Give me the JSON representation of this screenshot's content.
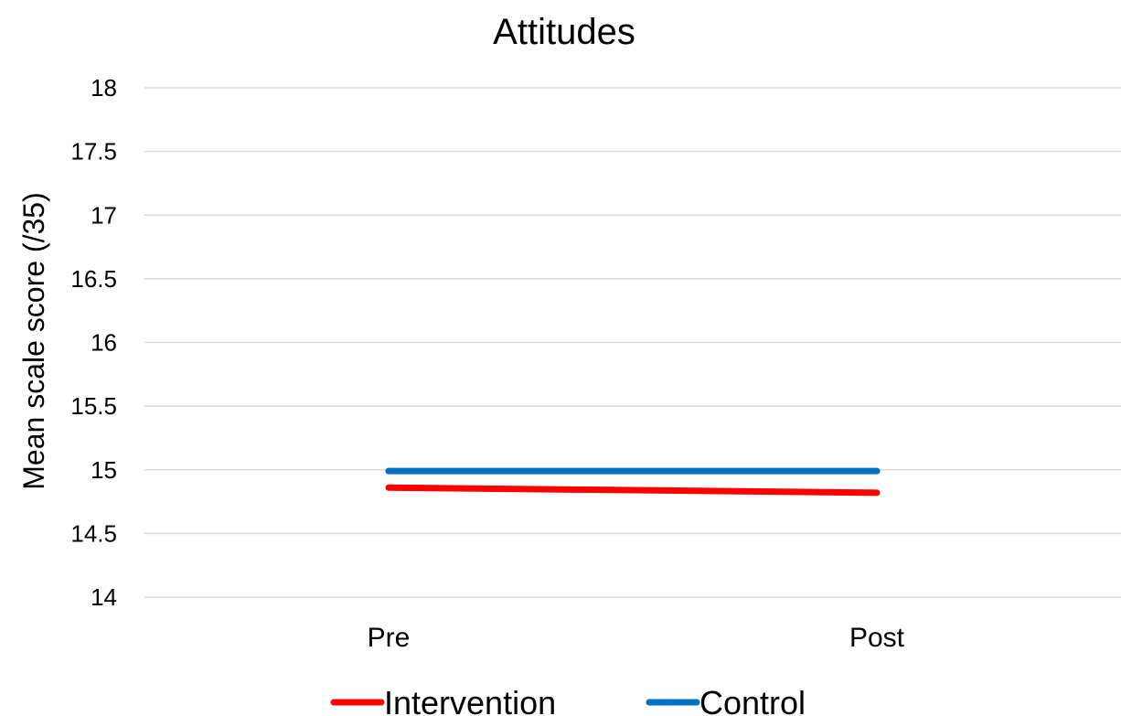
{
  "chart_data": {
    "type": "line",
    "title": "Attitudes",
    "xlabel": "",
    "ylabel": "Mean scale score (/35)",
    "categories": [
      "Pre",
      "Post"
    ],
    "ylim": [
      14,
      18
    ],
    "yticks": [
      "14",
      "14.5",
      "15",
      "15.5",
      "16",
      "16.5",
      "17",
      "17.5",
      "18"
    ],
    "grid": true,
    "legend_position": "bottom",
    "series": [
      {
        "name": "Intervention",
        "color": "#ff0000",
        "values": [
          14.86,
          14.82
        ]
      },
      {
        "name": "Control",
        "color": "#0070c0",
        "values": [
          14.99,
          14.99
        ]
      }
    ]
  }
}
